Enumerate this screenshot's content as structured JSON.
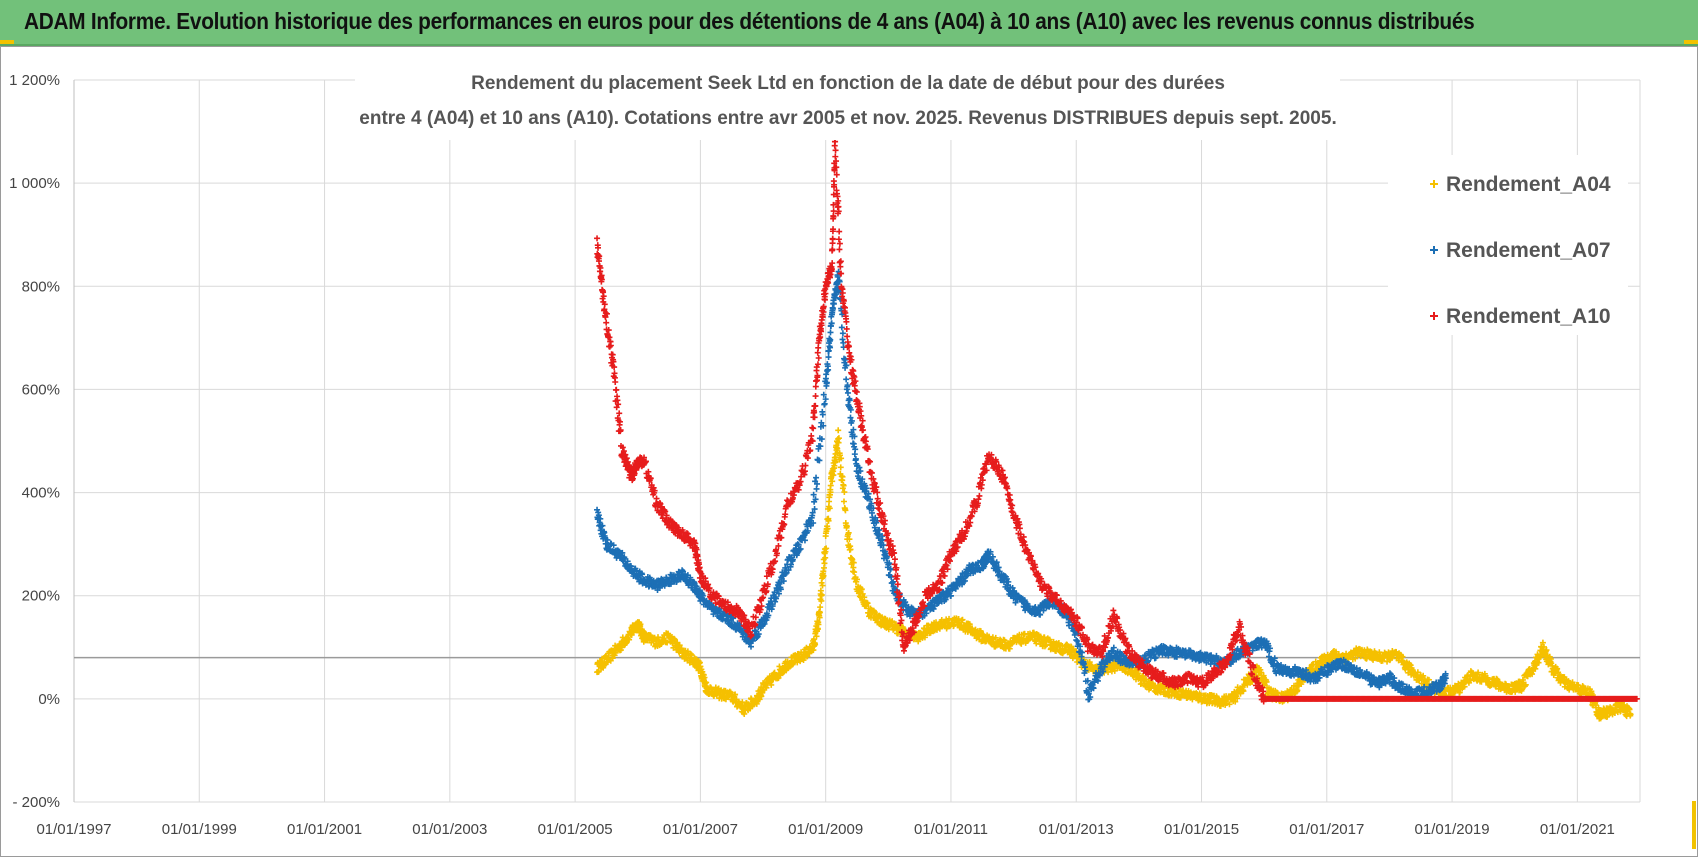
{
  "header": {
    "title": "ADAM Informe. Evolution historique des performances en euros pour des détentions de 4 ans (A04) à 10 ans (A10) avec les revenus connus distribués",
    "accent_color": "#72c17a",
    "corner_color": "#f2c200"
  },
  "chart_data": {
    "type": "scatter",
    "title_lines": [
      "Rendement du placement Seek Ltd en fonction de la date de début pour des durées",
      "entre 4 (A04) et 10 ans (A10). Cotations entre avr 2005 et nov. 2025. Revenus DISTRIBUES depuis sept. 2005."
    ],
    "x_tick_labels": [
      "01/01/1997",
      "01/01/1999",
      "01/01/2001",
      "01/01/2003",
      "01/01/2005",
      "01/01/2007",
      "01/01/2009",
      "01/01/2011",
      "01/01/2013",
      "01/01/2015",
      "01/01/2017",
      "01/01/2019",
      "01/01/2021"
    ],
    "x_range": [
      1997.0,
      2022.0
    ],
    "y_tick_labels": [
      "- 200%",
      "0%",
      "200%",
      "400%",
      "600%",
      "800%",
      "1 000%",
      "1 200%"
    ],
    "y_tick_values": [
      -200,
      0,
      200,
      400,
      600,
      800,
      1000,
      1200
    ],
    "ylim": [
      -200,
      1200
    ],
    "reference_line": 80,
    "legend_position": "right",
    "series": [
      {
        "name": "Rendement_A04",
        "color": "#f5c000",
        "points": [
          [
            2005.35,
            60
          ],
          [
            2005.5,
            75
          ],
          [
            2005.7,
            100
          ],
          [
            2005.9,
            130
          ],
          [
            2006.0,
            145
          ],
          [
            2006.1,
            120
          ],
          [
            2006.3,
            110
          ],
          [
            2006.5,
            120
          ],
          [
            2006.7,
            90
          ],
          [
            2006.9,
            75
          ],
          [
            2007.0,
            60
          ],
          [
            2007.1,
            20
          ],
          [
            2007.3,
            10
          ],
          [
            2007.5,
            5
          ],
          [
            2007.7,
            -20
          ],
          [
            2007.9,
            0
          ],
          [
            2008.0,
            20
          ],
          [
            2008.2,
            45
          ],
          [
            2008.4,
            70
          ],
          [
            2008.6,
            80
          ],
          [
            2008.8,
            100
          ],
          [
            2008.9,
            160
          ],
          [
            2009.0,
            300
          ],
          [
            2009.1,
            430
          ],
          [
            2009.2,
            500
          ],
          [
            2009.35,
            320
          ],
          [
            2009.5,
            220
          ],
          [
            2009.7,
            170
          ],
          [
            2009.9,
            150
          ],
          [
            2010.1,
            140
          ],
          [
            2010.3,
            125
          ],
          [
            2010.5,
            120
          ],
          [
            2010.7,
            140
          ],
          [
            2010.9,
            145
          ],
          [
            2011.1,
            150
          ],
          [
            2011.3,
            135
          ],
          [
            2011.5,
            120
          ],
          [
            2011.7,
            110
          ],
          [
            2011.9,
            105
          ],
          [
            2012.1,
            115
          ],
          [
            2012.3,
            120
          ],
          [
            2012.5,
            110
          ],
          [
            2012.7,
            100
          ],
          [
            2012.9,
            95
          ],
          [
            2013.1,
            70
          ],
          [
            2013.3,
            55
          ],
          [
            2013.5,
            60
          ],
          [
            2013.7,
            65
          ],
          [
            2013.9,
            55
          ],
          [
            2014.1,
            30
          ],
          [
            2014.3,
            20
          ],
          [
            2014.5,
            15
          ],
          [
            2014.7,
            10
          ],
          [
            2014.9,
            5
          ],
          [
            2015.1,
            0
          ],
          [
            2015.3,
            -5
          ],
          [
            2015.5,
            0
          ],
          [
            2015.7,
            30
          ],
          [
            2015.9,
            55
          ],
          [
            2016.1,
            10
          ],
          [
            2016.3,
            0
          ],
          [
            2016.5,
            20
          ],
          [
            2016.7,
            50
          ],
          [
            2016.9,
            70
          ],
          [
            2017.1,
            85
          ],
          [
            2017.3,
            80
          ],
          [
            2017.5,
            90
          ],
          [
            2017.7,
            85
          ],
          [
            2017.9,
            80
          ],
          [
            2018.1,
            85
          ],
          [
            2018.3,
            60
          ],
          [
            2018.5,
            40
          ],
          [
            2018.7,
            20
          ],
          [
            2018.9,
            10
          ],
          [
            2019.1,
            20
          ],
          [
            2019.3,
            45
          ],
          [
            2019.5,
            40
          ],
          [
            2019.7,
            30
          ],
          [
            2019.9,
            20
          ],
          [
            2020.1,
            25
          ],
          [
            2020.3,
            60
          ],
          [
            2020.45,
            100
          ],
          [
            2020.6,
            60
          ],
          [
            2020.8,
            30
          ],
          [
            2021.0,
            20
          ],
          [
            2021.2,
            10
          ],
          [
            2021.35,
            -30
          ],
          [
            2021.5,
            -25
          ],
          [
            2021.7,
            -15
          ],
          [
            2021.85,
            -30
          ]
        ]
      },
      {
        "name": "Rendement_A07",
        "color": "#1c6fb5",
        "points": [
          [
            2005.35,
            360
          ],
          [
            2005.5,
            300
          ],
          [
            2005.7,
            280
          ],
          [
            2005.9,
            250
          ],
          [
            2006.1,
            230
          ],
          [
            2006.3,
            220
          ],
          [
            2006.5,
            230
          ],
          [
            2006.7,
            240
          ],
          [
            2006.9,
            220
          ],
          [
            2007.0,
            200
          ],
          [
            2007.2,
            170
          ],
          [
            2007.4,
            160
          ],
          [
            2007.6,
            140
          ],
          [
            2007.8,
            110
          ],
          [
            2008.0,
            150
          ],
          [
            2008.2,
            200
          ],
          [
            2008.4,
            260
          ],
          [
            2008.6,
            300
          ],
          [
            2008.8,
            360
          ],
          [
            2009.0,
            600
          ],
          [
            2009.1,
            740
          ],
          [
            2009.2,
            820
          ],
          [
            2009.35,
            600
          ],
          [
            2009.5,
            450
          ],
          [
            2009.7,
            380
          ],
          [
            2009.9,
            300
          ],
          [
            2010.1,
            210
          ],
          [
            2010.3,
            170
          ],
          [
            2010.5,
            165
          ],
          [
            2010.7,
            180
          ],
          [
            2010.9,
            200
          ],
          [
            2011.1,
            220
          ],
          [
            2011.3,
            250
          ],
          [
            2011.5,
            260
          ],
          [
            2011.6,
            280
          ],
          [
            2011.8,
            240
          ],
          [
            2012.0,
            200
          ],
          [
            2012.2,
            180
          ],
          [
            2012.4,
            170
          ],
          [
            2012.6,
            190
          ],
          [
            2012.8,
            170
          ],
          [
            2013.0,
            130
          ],
          [
            2013.2,
            10
          ],
          [
            2013.4,
            60
          ],
          [
            2013.6,
            90
          ],
          [
            2013.8,
            70
          ],
          [
            2014.0,
            70
          ],
          [
            2014.2,
            85
          ],
          [
            2014.4,
            95
          ],
          [
            2014.6,
            90
          ],
          [
            2014.8,
            85
          ],
          [
            2015.0,
            80
          ],
          [
            2015.2,
            75
          ],
          [
            2015.4,
            70
          ],
          [
            2015.6,
            90
          ],
          [
            2015.8,
            100
          ],
          [
            2016.0,
            110
          ],
          [
            2016.2,
            60
          ],
          [
            2016.4,
            55
          ],
          [
            2016.6,
            50
          ],
          [
            2016.8,
            40
          ],
          [
            2017.0,
            55
          ],
          [
            2017.2,
            70
          ],
          [
            2017.4,
            60
          ],
          [
            2017.6,
            45
          ],
          [
            2017.8,
            30
          ],
          [
            2018.0,
            40
          ],
          [
            2018.2,
            20
          ],
          [
            2018.4,
            10
          ],
          [
            2018.6,
            15
          ],
          [
            2018.8,
            25
          ],
          [
            2018.9,
            40
          ]
        ]
      },
      {
        "name": "Rendement_A10",
        "color": "#e61c1c",
        "points": [
          [
            2005.35,
            880
          ],
          [
            2005.45,
            780
          ],
          [
            2005.6,
            650
          ],
          [
            2005.75,
            480
          ],
          [
            2005.9,
            430
          ],
          [
            2006.0,
            460
          ],
          [
            2006.1,
            460
          ],
          [
            2006.3,
            380
          ],
          [
            2006.5,
            340
          ],
          [
            2006.7,
            320
          ],
          [
            2006.9,
            300
          ],
          [
            2007.0,
            240
          ],
          [
            2007.2,
            200
          ],
          [
            2007.4,
            180
          ],
          [
            2007.6,
            170
          ],
          [
            2007.8,
            130
          ],
          [
            2008.0,
            200
          ],
          [
            2008.2,
            280
          ],
          [
            2008.4,
            380
          ],
          [
            2008.6,
            420
          ],
          [
            2008.8,
            520
          ],
          [
            2008.9,
            700
          ],
          [
            2009.0,
            800
          ],
          [
            2009.1,
            840
          ],
          [
            2009.15,
            1080
          ],
          [
            2009.25,
            800
          ],
          [
            2009.4,
            650
          ],
          [
            2009.55,
            550
          ],
          [
            2009.7,
            450
          ],
          [
            2009.9,
            350
          ],
          [
            2010.1,
            270
          ],
          [
            2010.25,
            100
          ],
          [
            2010.4,
            140
          ],
          [
            2010.6,
            200
          ],
          [
            2010.8,
            220
          ],
          [
            2011.0,
            280
          ],
          [
            2011.2,
            320
          ],
          [
            2011.4,
            380
          ],
          [
            2011.6,
            470
          ],
          [
            2011.8,
            440
          ],
          [
            2012.0,
            360
          ],
          [
            2012.2,
            290
          ],
          [
            2012.4,
            230
          ],
          [
            2012.6,
            200
          ],
          [
            2012.8,
            180
          ],
          [
            2013.0,
            150
          ],
          [
            2013.2,
            100
          ],
          [
            2013.4,
            90
          ],
          [
            2013.6,
            160
          ],
          [
            2013.8,
            100
          ],
          [
            2014.0,
            70
          ],
          [
            2014.2,
            50
          ],
          [
            2014.4,
            40
          ],
          [
            2014.6,
            30
          ],
          [
            2014.8,
            40
          ],
          [
            2015.0,
            30
          ],
          [
            2015.2,
            50
          ],
          [
            2015.4,
            70
          ],
          [
            2015.6,
            140
          ],
          [
            2015.8,
            60
          ],
          [
            2016.0,
            0
          ],
          [
            2016.5,
            0
          ],
          [
            2017.0,
            0
          ],
          [
            2017.5,
            0
          ],
          [
            2018.0,
            0
          ],
          [
            2018.5,
            0
          ],
          [
            2019.0,
            0
          ],
          [
            2019.5,
            0
          ],
          [
            2020.0,
            0
          ],
          [
            2020.5,
            0
          ],
          [
            2021.0,
            0
          ],
          [
            2021.5,
            0
          ],
          [
            2021.95,
            0
          ]
        ]
      }
    ]
  }
}
